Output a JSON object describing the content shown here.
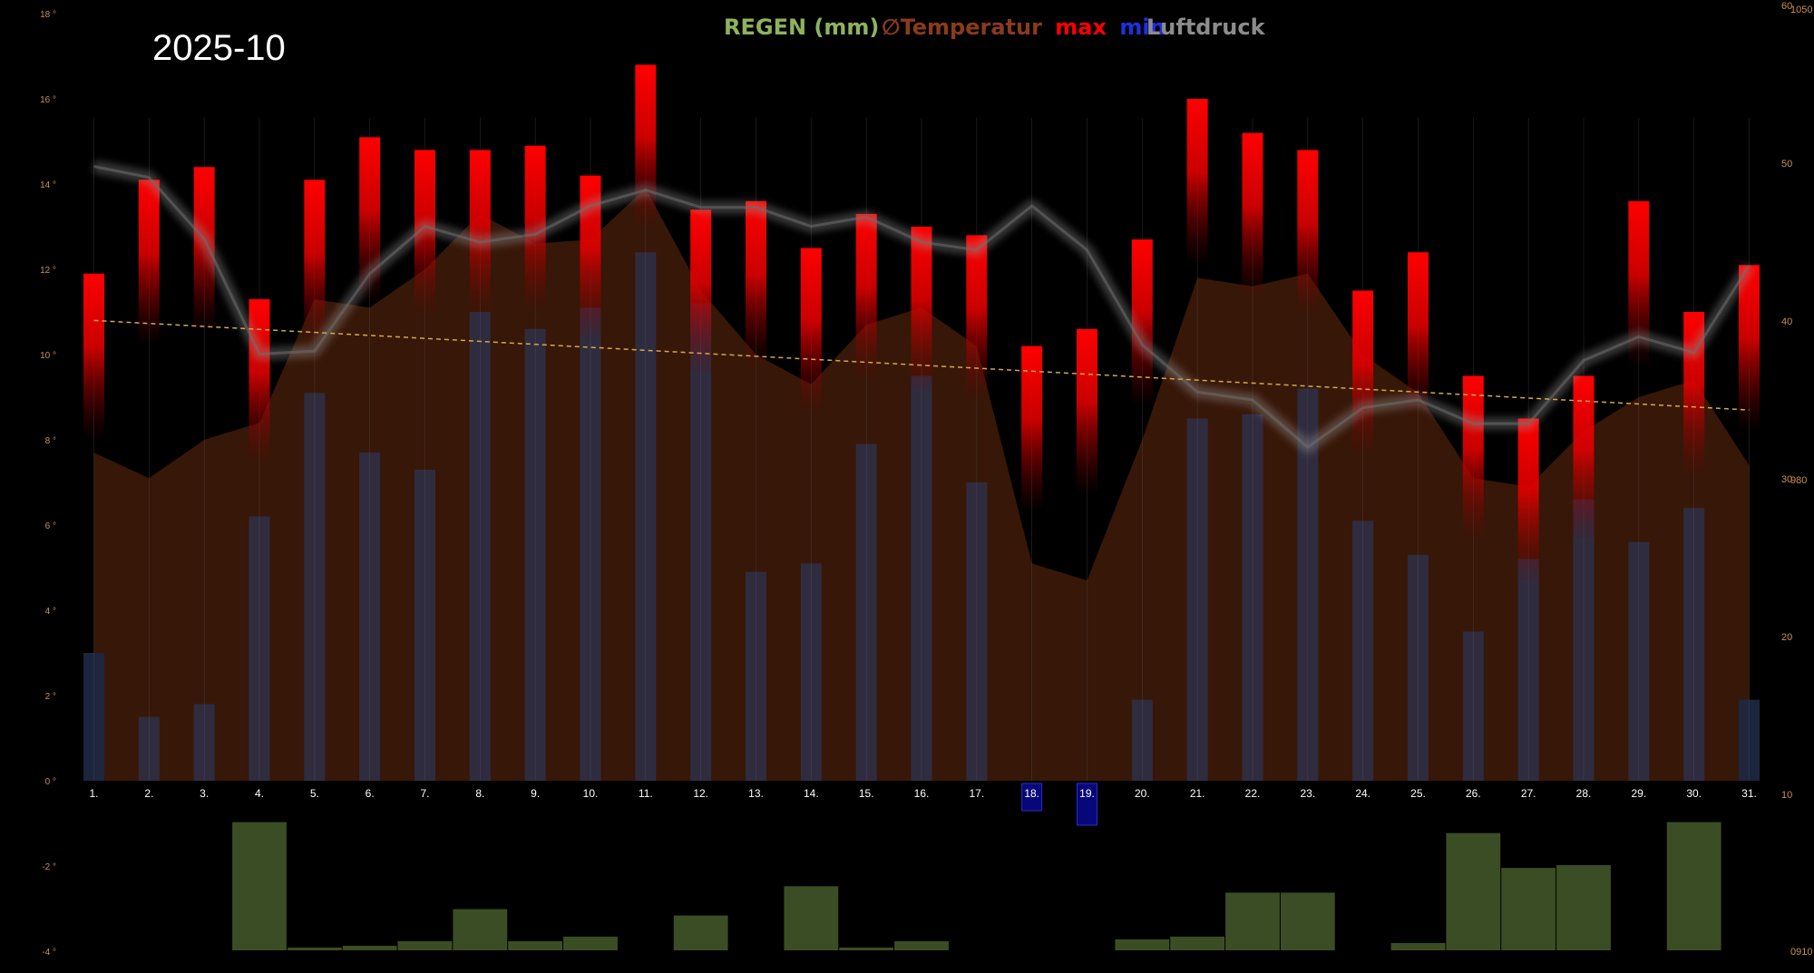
{
  "chart_data": {
    "type": "bar",
    "title": "2025-10",
    "legend": {
      "rain": "REGEN (mm)",
      "temp_symbol": "∅",
      "temp": "Temperatur",
      "max": "max",
      "min": "min",
      "pressure": "Luftdruck"
    },
    "colors": {
      "rain": "#3a4d24",
      "rain_text": "#8db35e",
      "temp_area": "#3a1808",
      "temp_text": "#8b3a1e",
      "max": "#ff0000",
      "min_text": "#1f2fe0",
      "min_bar": "#302f44",
      "pressure_text": "#8c8c8c",
      "trend": "#d4a84a",
      "axis_tick": "#c8914e",
      "highlight": "#07077a"
    },
    "days": [
      "1.",
      "2.",
      "3.",
      "4.",
      "5.",
      "6.",
      "7.",
      "8.",
      "9.",
      "10.",
      "11.",
      "12.",
      "13.",
      "14.",
      "15.",
      "16.",
      "17.",
      "18.",
      "19.",
      "20.",
      "21.",
      "22.",
      "23.",
      "24.",
      "25.",
      "26.",
      "27.",
      "28.",
      "29.",
      "30.",
      "31."
    ],
    "highlighted_days": [
      "18.",
      "19."
    ],
    "left_axis": {
      "range": [
        -4,
        18
      ],
      "ticks": [
        "18 °",
        "16 °",
        "14 °",
        "12 °",
        "10 °",
        "8 °",
        "6 °",
        "4 °",
        "2 °",
        "0 °",
        "-2 °",
        "-4 °"
      ]
    },
    "right_axis": {
      "range": [
        10,
        60
      ],
      "ticks": [
        "60",
        "50",
        "40",
        "30",
        "20",
        "10"
      ]
    },
    "pressure_axis_marks": [
      "1050",
      "980",
      "0910"
    ],
    "series": [
      {
        "name": "max",
        "values": [
          11.9,
          14.1,
          14.4,
          11.3,
          14.1,
          15.1,
          14.8,
          14.8,
          14.9,
          14.2,
          16.8,
          13.4,
          13.6,
          12.5,
          13.3,
          13.0,
          12.8,
          10.2,
          10.6,
          12.7,
          16.0,
          15.2,
          14.8,
          11.5,
          12.4,
          9.5,
          8.5,
          9.5,
          13.6,
          11.0,
          12.1
        ]
      },
      {
        "name": "min",
        "values": [
          3.0,
          1.5,
          1.8,
          6.2,
          9.1,
          7.7,
          7.3,
          11.0,
          10.6,
          11.1,
          12.4,
          11.2,
          4.9,
          5.1,
          7.9,
          9.5,
          7.0,
          null,
          null,
          1.9,
          8.5,
          8.6,
          9.2,
          6.1,
          5.3,
          3.5,
          5.2,
          6.6,
          5.6,
          6.4,
          1.9
        ]
      },
      {
        "name": "avg",
        "values": [
          7.7,
          7.1,
          8.0,
          8.4,
          11.3,
          11.1,
          12.0,
          13.3,
          12.6,
          12.7,
          13.9,
          11.5,
          10.0,
          9.3,
          10.7,
          11.1,
          10.2,
          5.1,
          4.7,
          8.0,
          11.8,
          11.6,
          11.9,
          10.0,
          9.1,
          7.1,
          6.9,
          8.2,
          9.0,
          9.4,
          7.4
        ]
      },
      {
        "name": "pressure",
        "values": [
          49.8,
          49.1,
          45.2,
          37.9,
          38.1,
          43.0,
          46.0,
          45.0,
          45.5,
          47.3,
          48.3,
          47.2,
          47.2,
          46.0,
          46.6,
          45.0,
          44.5,
          47.3,
          44.5,
          38.5,
          35.5,
          35.0,
          32.0,
          34.5,
          35.0,
          33.5,
          33.5,
          37.5,
          39.0,
          38.0,
          43.5
        ]
      },
      {
        "name": "rain",
        "values": [
          0,
          0,
          0,
          14.0,
          0.3,
          0.5,
          1.0,
          4.5,
          1.0,
          1.5,
          0,
          3.8,
          0,
          7.0,
          0.3,
          1.0,
          0,
          0,
          0,
          1.2,
          1.5,
          6.3,
          6.3,
          0,
          0.8,
          12.8,
          9.0,
          9.3,
          0,
          14.0,
          0
        ]
      }
    ],
    "trend": {
      "start": 10.8,
      "end": 8.7
    }
  }
}
